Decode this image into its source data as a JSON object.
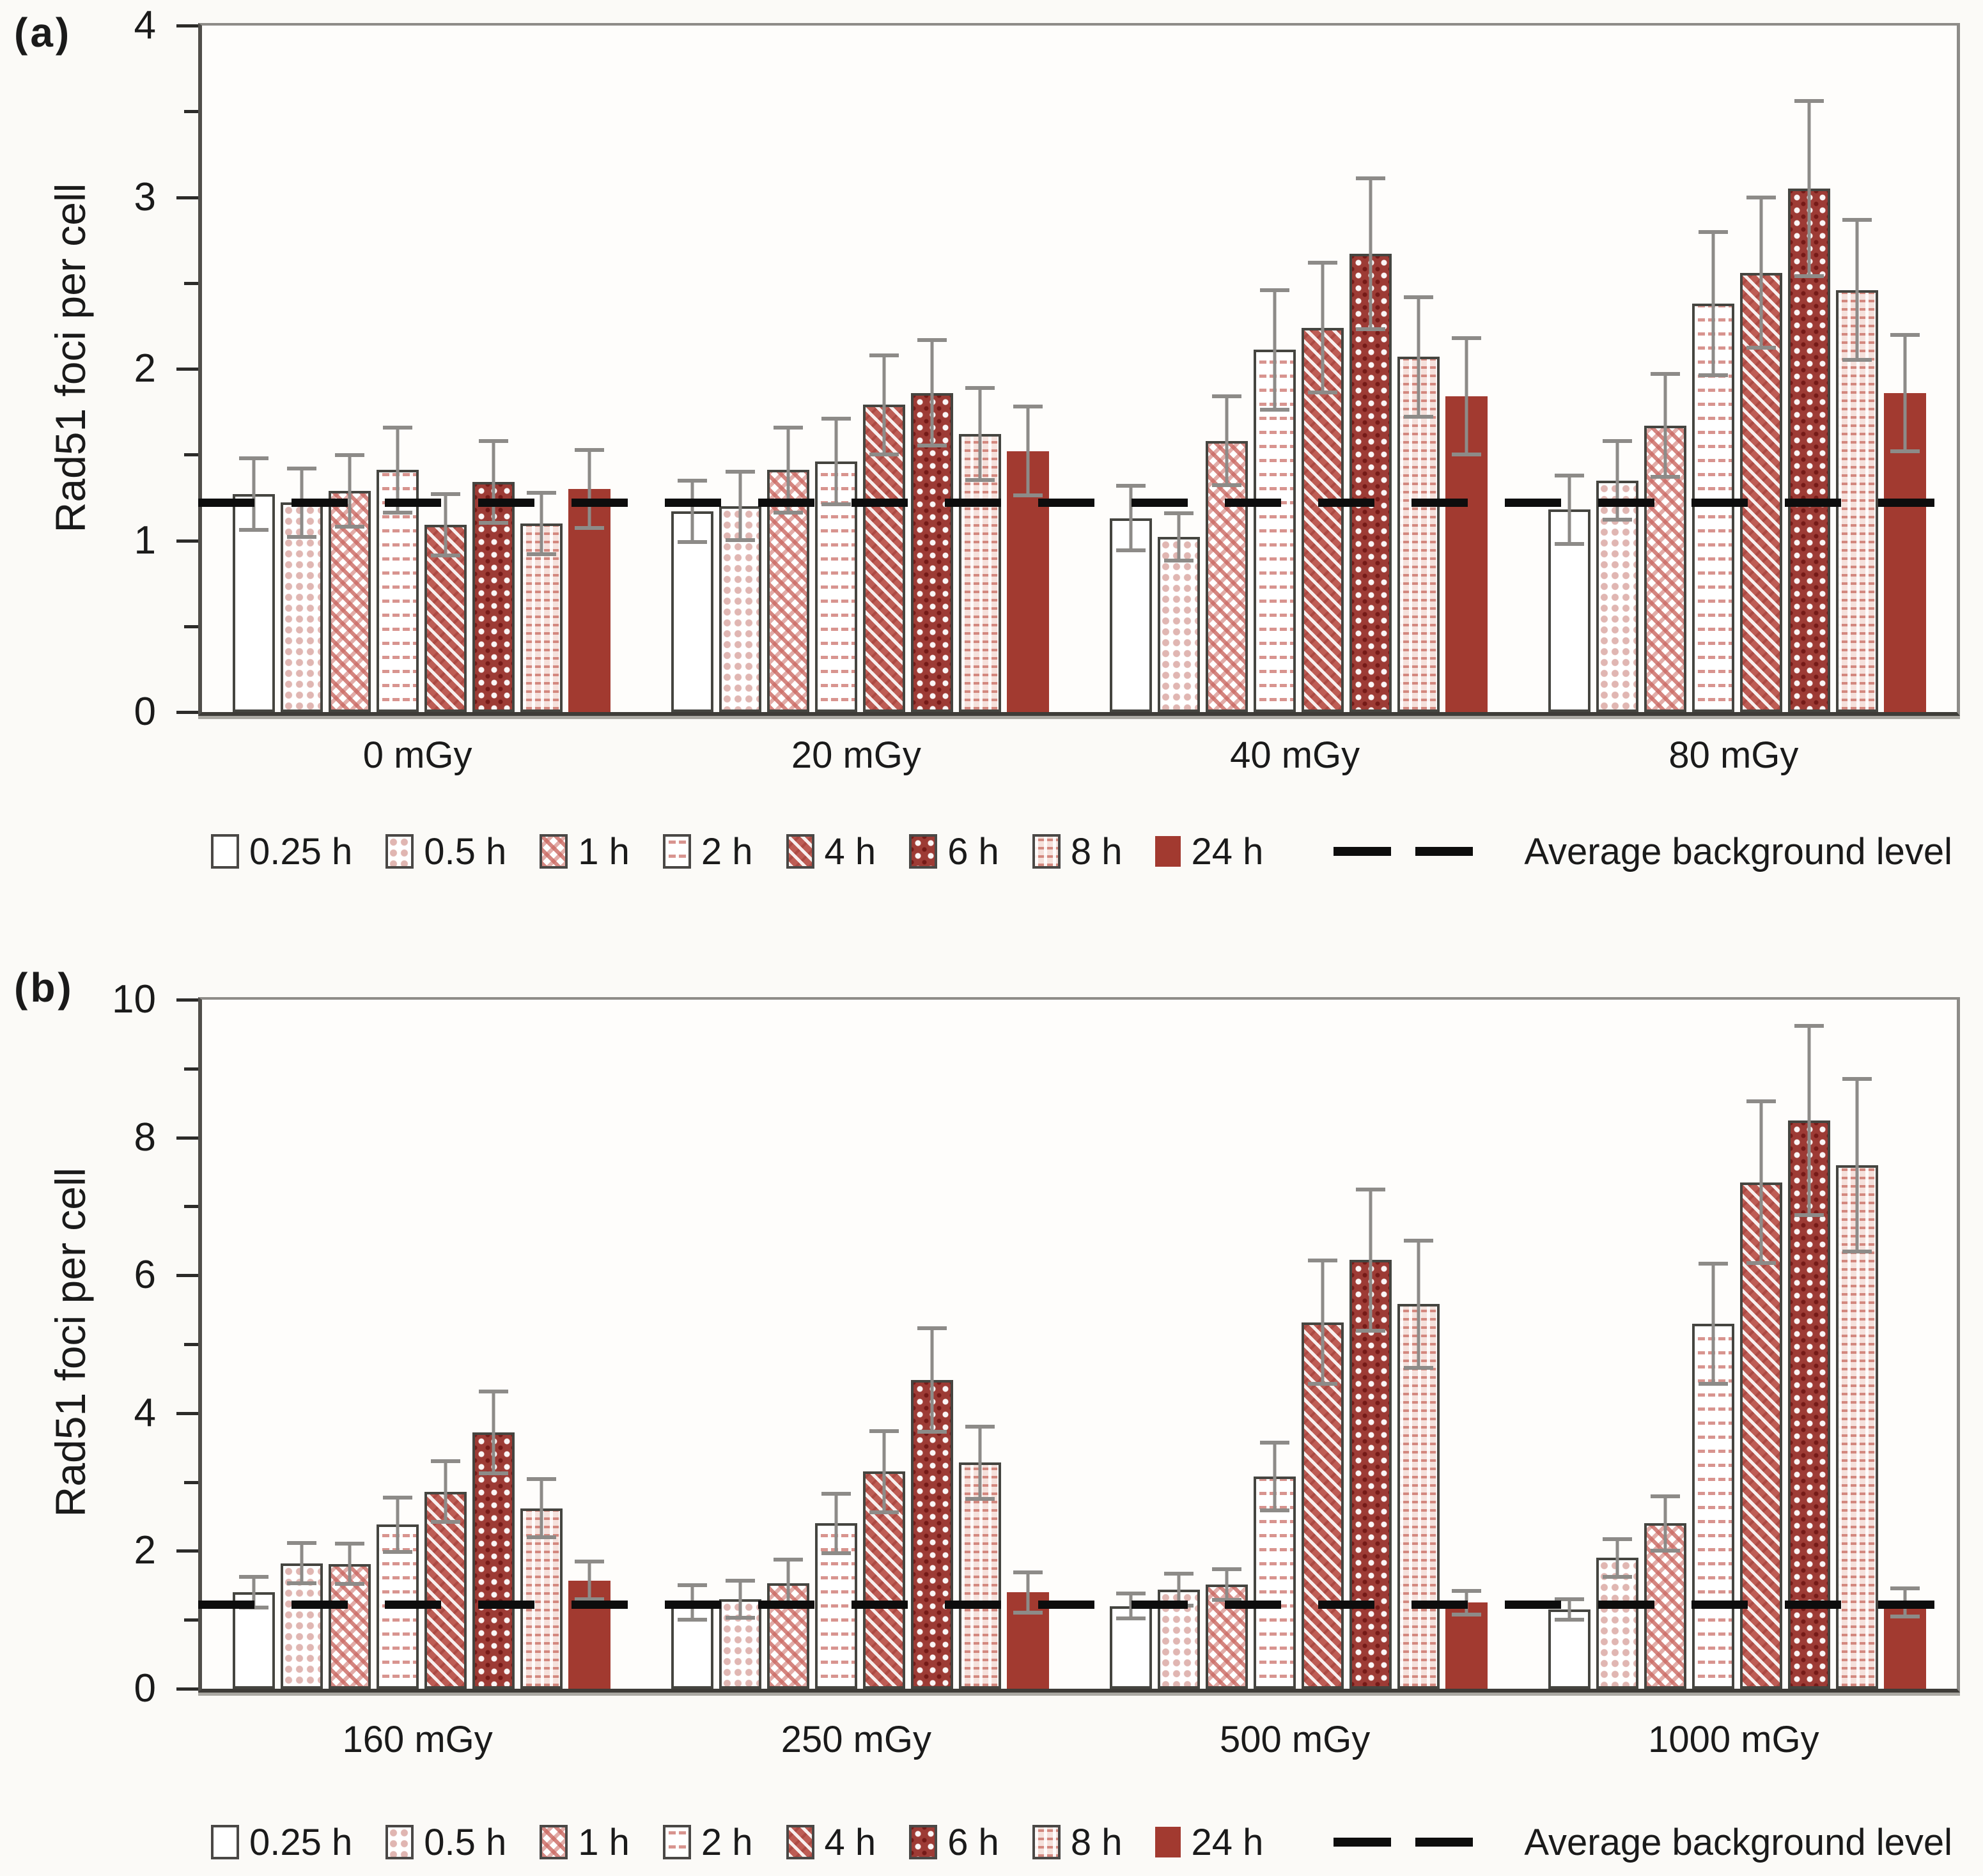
{
  "figure": {
    "panel_a_label": "(a)",
    "panel_b_label": "(b)",
    "y_axis_label": "Rad51 foci per cell",
    "dashed_legend_label": "Average background level"
  },
  "colors": {
    "solid_red": "#a23a30",
    "dark_red_pattern": "#9d3b35",
    "medium_red_pattern": "#bd5c54",
    "pink_pattern": "#ca6760",
    "light_pink": "#e8b7b0",
    "error_bar": "#8d8b88",
    "dashed_line": "#0d0d0d",
    "axis": "#3e3c38",
    "frame": "#8e8c88"
  },
  "chart_data": [
    {
      "type": "bar",
      "panel": "a",
      "ylabel": "Rad51 foci per cell",
      "ylim": [
        0,
        4
      ],
      "ytick_major": 1,
      "ytick_minor": 0.5,
      "ytick_labels": [
        "0",
        "1",
        "2",
        "3",
        "4"
      ],
      "grid": false,
      "legend_position": "bottom",
      "background_line": {
        "value": 1.22,
        "label": "Average background level"
      },
      "categories": [
        "0 mGy",
        "20 mGy",
        "40 mGy",
        "80 mGy"
      ],
      "series": [
        {
          "name": "0.25 h",
          "values": [
            1.27,
            1.17,
            1.13,
            1.18
          ],
          "errors": [
            0.22,
            0.19,
            0.2,
            0.21
          ]
        },
        {
          "name": "0.5 h",
          "values": [
            1.22,
            1.2,
            1.02,
            1.35
          ],
          "errors": [
            0.21,
            0.21,
            0.15,
            0.24
          ]
        },
        {
          "name": "1 h",
          "values": [
            1.29,
            1.41,
            1.58,
            1.67
          ],
          "errors": [
            0.22,
            0.26,
            0.27,
            0.31
          ]
        },
        {
          "name": "2 h",
          "values": [
            1.41,
            1.46,
            2.11,
            2.38
          ],
          "errors": [
            0.26,
            0.26,
            0.36,
            0.43
          ]
        },
        {
          "name": "4 h",
          "values": [
            1.09,
            1.79,
            2.24,
            2.56
          ],
          "errors": [
            0.19,
            0.3,
            0.39,
            0.45
          ]
        },
        {
          "name": "6 h",
          "values": [
            1.34,
            1.86,
            2.67,
            3.05
          ],
          "errors": [
            0.25,
            0.32,
            0.45,
            0.52
          ]
        },
        {
          "name": "8 h",
          "values": [
            1.1,
            1.62,
            2.07,
            2.46
          ],
          "errors": [
            0.19,
            0.28,
            0.36,
            0.42
          ]
        },
        {
          "name": "24 h",
          "values": [
            1.3,
            1.52,
            1.84,
            1.86
          ],
          "errors": [
            0.24,
            0.27,
            0.35,
            0.35
          ]
        }
      ]
    },
    {
      "type": "bar",
      "panel": "b",
      "ylabel": "Rad51 foci per cell",
      "ylim": [
        0,
        10
      ],
      "ytick_major": 2,
      "ytick_minor": 1,
      "ytick_labels": [
        "0",
        "2",
        "4",
        "6",
        "8",
        "10"
      ],
      "grid": false,
      "legend_position": "bottom",
      "background_line": {
        "value": 1.22,
        "label": "Average background level"
      },
      "categories": [
        "160 mGy",
        "250 mGy",
        "500 mGy",
        "1000 mGy"
      ],
      "series": [
        {
          "name": "0.25 h",
          "values": [
            1.4,
            1.25,
            1.2,
            1.15
          ],
          "errors": [
            0.25,
            0.28,
            0.21,
            0.18
          ]
        },
        {
          "name": "0.5 h",
          "values": [
            1.82,
            1.3,
            1.44,
            1.9
          ],
          "errors": [
            0.32,
            0.3,
            0.26,
            0.3
          ]
        },
        {
          "name": "1 h",
          "values": [
            1.81,
            1.53,
            1.51,
            2.4
          ],
          "errors": [
            0.32,
            0.37,
            0.25,
            0.42
          ]
        },
        {
          "name": "2 h",
          "values": [
            2.38,
            2.4,
            3.08,
            5.3
          ],
          "errors": [
            0.42,
            0.46,
            0.52,
            0.9
          ]
        },
        {
          "name": "4 h",
          "values": [
            2.86,
            3.15,
            5.32,
            7.35
          ],
          "errors": [
            0.47,
            0.62,
            0.92,
            1.2
          ]
        },
        {
          "name": "6 h",
          "values": [
            3.72,
            4.48,
            6.22,
            8.25
          ],
          "errors": [
            0.62,
            0.78,
            1.05,
            1.4
          ]
        },
        {
          "name": "8 h",
          "values": [
            2.62,
            3.28,
            5.58,
            7.6
          ],
          "errors": [
            0.45,
            0.55,
            0.95,
            1.28
          ]
        },
        {
          "name": "24 h",
          "values": [
            1.57,
            1.4,
            1.25,
            1.25
          ],
          "errors": [
            0.3,
            0.32,
            0.2,
            0.23
          ]
        }
      ]
    }
  ]
}
